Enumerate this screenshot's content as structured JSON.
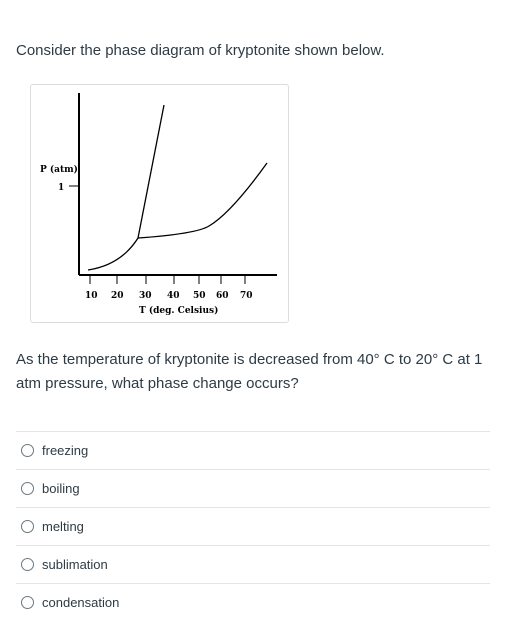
{
  "question": {
    "intro": "Consider the phase diagram of kryptonite shown below.",
    "prompt": "As the temperature of kryptonite is decreased from 40° C to 20° C at 1 atm pressure, what phase change occurs?"
  },
  "diagram": {
    "y_axis_label": "P (atm)",
    "y_tick_label": "1",
    "x_axis_label": "T (deg. Celsius)",
    "x_ticks": [
      "10",
      "20",
      "30",
      "40",
      "50",
      "60",
      "70"
    ]
  },
  "answers": [
    {
      "label": "freezing"
    },
    {
      "label": "boiling"
    },
    {
      "label": "melting"
    },
    {
      "label": "sublimation"
    },
    {
      "label": "condensation"
    }
  ]
}
